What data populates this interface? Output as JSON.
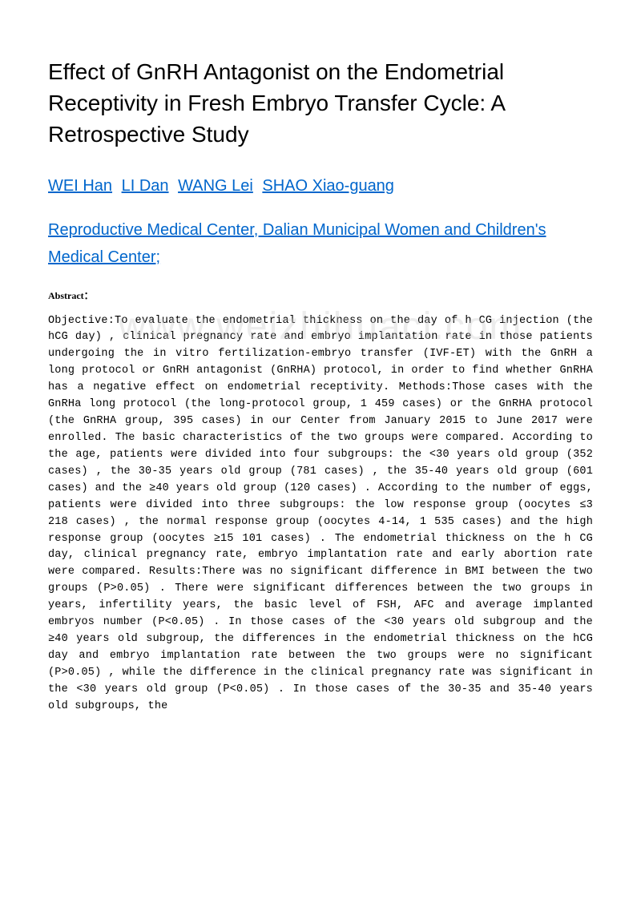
{
  "title": "Effect of GnRH Antagonist on the Endometrial Receptivity in Fresh Embryo Transfer Cycle: A Retrospective Study",
  "authors": [
    "WEI Han",
    "LI Dan",
    "WANG Lei",
    "SHAO Xiao-guang"
  ],
  "affiliation": "Reproductive Medical Center, Dalian Municipal Women and Children's Medical Center;",
  "abstract_label": "Abstract：",
  "abstract_body": "Objective:To evaluate the endometrial thickness on the day of h CG injection (the hCG day) , clinical pregnancy rate and embryo implantation rate in those patients undergoing the in vitro fertilization-embryo transfer (IVF-ET) with the GnRH a long protocol or GnRH antagonist (GnRHA) protocol, in order to find whether GnRHA has a negative effect on endometrial receptivity. Methods:Those cases with the GnRHa long protocol (the long-protocol group, 1 459 cases) or the GnRHA protocol (the GnRHA group, 395 cases) in our Center from January 2015 to June 2017 were enrolled. The basic characteristics of the two groups were compared. According to the age, patients were divided into four subgroups: the <30 years old group (352 cases) , the 30-35 years old group (781 cases) , the 35-40 years old group (601 cases) and the ≥40 years old group (120 cases) . According to the number of eggs, patients were divided into three subgroups: the low response group (oocytes ≤3 218 cases) , the normal response group (oocytes 4-14, 1 535 cases) and the high response group (oocytes ≥15 101 cases) . The endometrial thickness on the h CG day, clinical pregnancy rate, embryo implantation rate and early abortion rate were compared. Results:There was no significant difference in BMI between the two groups (P>0.05) . There were significant differences between the two groups in years, infertility years, the basic level of FSH, AFC and average implanted embryos number (P<0.05) . In those cases of the <30 years old subgroup and the ≥40 years old subgroup, the differences in the endometrial thickness on the hCG day and embryo implantation rate between the two groups were no significant (P>0.05) , while the difference in the clinical pregnancy rate was significant in the <30 years old group (P<0.05) . In those cases of the 30-35 and 35-40 years old subgroups, the",
  "watermark": "www.weizhihuaci.com",
  "colors": {
    "link": "#0066cc",
    "text": "#000000",
    "background": "#ffffff",
    "watermark": "rgba(200,200,200,0.35)"
  },
  "fonts": {
    "title_size": 28,
    "author_size": 20,
    "abstract_label_size": 12,
    "abstract_body_size": 13.5
  }
}
